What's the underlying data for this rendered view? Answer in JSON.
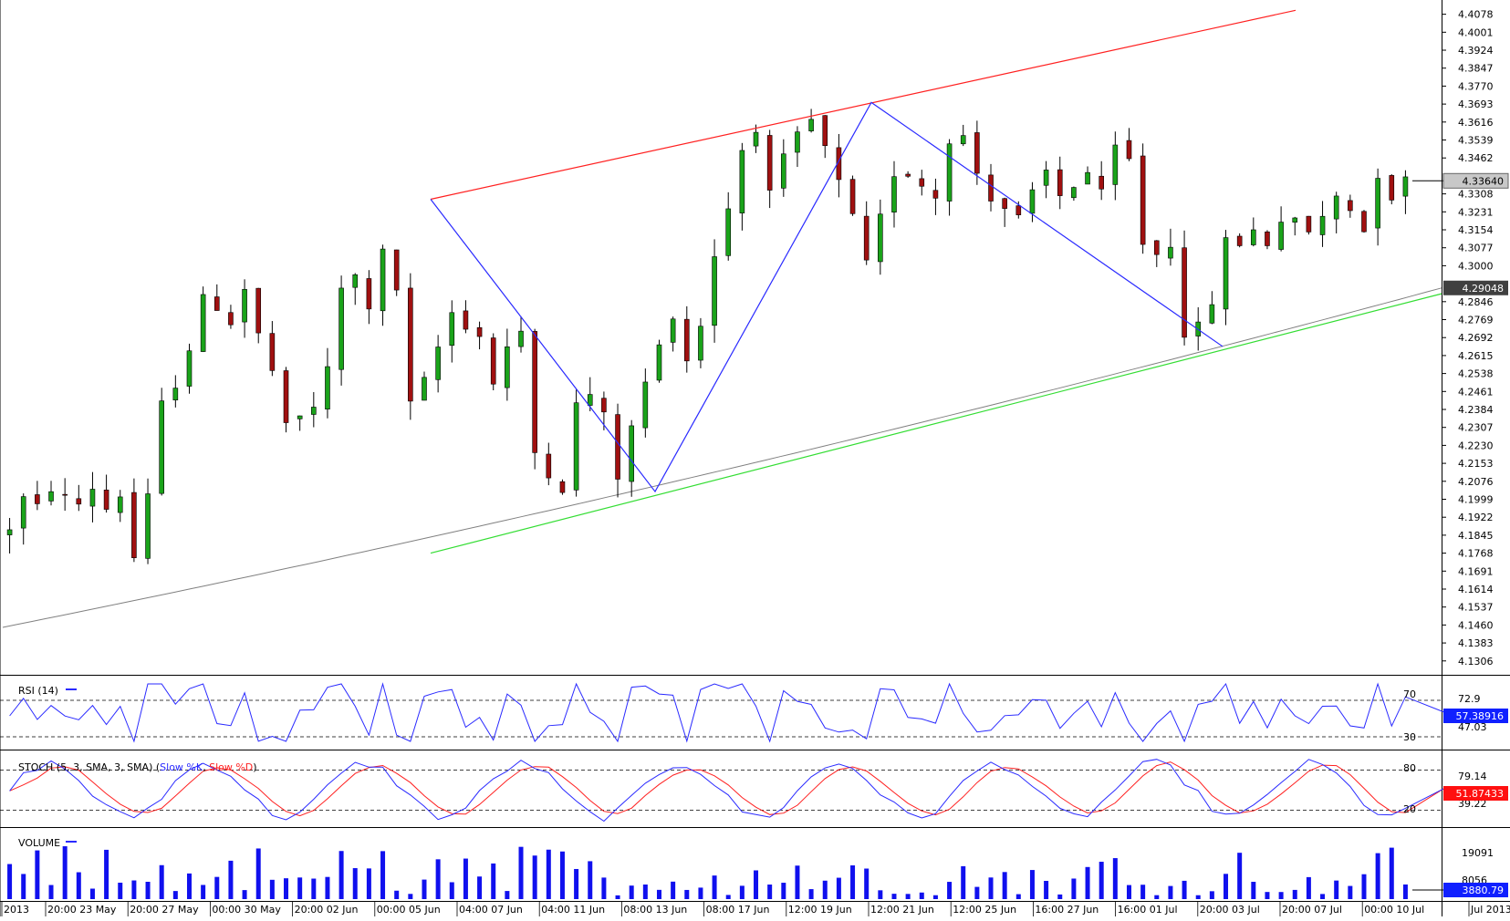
{
  "chart_data": {
    "type": "candlestick",
    "price_axis": {
      "ticks": [
        "4.4078",
        "4.4001",
        "4.3924",
        "4.3847",
        "4.3770",
        "4.3693",
        "4.3616",
        "4.3539",
        "4.3462",
        "4.3308",
        "4.3231",
        "4.3154",
        "4.3077",
        "4.3000",
        "4.2846",
        "4.2769",
        "4.2692",
        "4.2615",
        "4.2538",
        "4.2461",
        "4.2384",
        "4.2307",
        "4.2230",
        "4.2153",
        "4.2076",
        "4.1999",
        "4.1922",
        "4.1845",
        "4.1768",
        "4.1691",
        "4.1614",
        "4.1537",
        "4.1460",
        "4.1383",
        "4.1306"
      ],
      "ylim": [
        4.127,
        4.41
      ],
      "current_price_label": "4.33640",
      "current_price": 4.3364,
      "ma_label": "4.29048",
      "ma_value": 4.29048
    },
    "time_axis": {
      "labels": [
        "2013",
        "20:00 23 May",
        "20:00 27 May",
        "00:00 30 May",
        "20:00 02 Jun",
        "00:00 05 Jun",
        "04:00 07 Jun",
        "04:00 11 Jun",
        "08:00 13 Jun",
        "08:00 17 Jun",
        "12:00 19 Jun",
        "12:00 21 Jun",
        "12:00 25 Jun",
        "16:00 27 Jun",
        "16:00 01 Jul",
        "20:00 03 Jul",
        "20:00 07 Jul",
        "00:00 10 Jul",
        "Jul 2013"
      ]
    },
    "close_path": [
      4.188,
      4.2,
      4.196,
      4.205,
      4.2,
      4.198,
      4.205,
      4.196,
      4.202,
      4.175,
      4.2,
      4.24,
      4.25,
      4.265,
      4.285,
      4.283,
      4.276,
      4.29,
      4.27,
      4.255,
      4.23,
      4.235,
      4.24,
      4.255,
      4.29,
      4.295,
      4.283,
      4.305,
      4.29,
      4.24,
      4.25,
      4.265,
      4.28,
      4.275,
      4.27,
      4.25,
      4.265,
      4.27,
      4.22,
      4.212,
      4.205,
      4.24,
      4.245,
      4.235,
      4.21,
      4.23,
      4.25,
      4.265,
      4.28,
      4.26,
      4.275,
      4.305,
      4.325,
      4.35,
      4.36,
      4.33,
      4.345,
      4.355,
      4.362,
      4.35,
      4.335,
      4.32,
      4.3,
      4.32,
      4.34,
      4.34,
      4.335,
      4.33,
      4.355,
      4.355,
      4.34,
      4.33,
      4.325,
      4.32,
      4.33,
      4.34,
      4.33,
      4.335,
      4.34,
      4.33,
      4.35,
      4.345,
      4.31,
      4.305,
      4.31,
      4.272,
      4.273,
      4.285,
      4.31,
      4.31,
      4.315,
      4.31,
      4.32,
      4.318,
      4.315,
      4.32,
      4.33,
      4.325,
      4.315,
      4.34,
      4.33,
      4.3364
    ],
    "moving_average": {
      "start": 4.145,
      "end": 4.29048
    },
    "annotations": {
      "channel_upper": [
        [
          0,
          4.3285
        ],
        [
          0.5,
          4.37
        ],
        [
          1,
          4.4095
        ]
      ],
      "channel_lower": [
        [
          0,
          4.1768
        ],
        [
          1,
          4.288
        ]
      ],
      "zigzag": [
        [
          0,
          4.3285
        ],
        [
          0.155,
          4.2032
        ],
        [
          0.3,
          4.37
        ],
        [
          0.55,
          4.2654
        ]
      ]
    },
    "rsi": {
      "label": "RSI (14)",
      "levels": [
        "70",
        "30"
      ],
      "scale_labels": [
        "72.9",
        "47.03"
      ],
      "current_label": "57.38916",
      "current": 57.38916
    },
    "stoch": {
      "label": "STOCH (5, 3, SMA, 3, SMA)",
      "k_label": "Slow %K",
      "d_label": "Slow %D",
      "levels": [
        "80",
        "20"
      ],
      "scale_labels": [
        "79.14",
        "39.22"
      ],
      "current_label": "51.87433",
      "current": 51.87433
    },
    "volume": {
      "label": "VOLUME",
      "scale_labels": [
        "19091",
        "8056"
      ],
      "current_label": "3880.79",
      "current": 3880.79
    },
    "colors": {
      "bull": "#1aa31a",
      "bear": "#a01010",
      "channel_upper": "#ff2020",
      "channel_lower": "#33dd33",
      "zigzag": "#2a2aff",
      "moving_average": "#808080",
      "rsi_line": "#2a2aff",
      "stoch_k": "#2a2aff",
      "stoch_d": "#ff2020",
      "volume_bar": "#1010ee",
      "price_label_bg": "#c8c8c8",
      "ma_label_bg": "#404040",
      "rsi_label_bg": "#1020ff",
      "stoch_label_bg": "#ff1010",
      "volume_label_bg": "#1020ff"
    }
  }
}
